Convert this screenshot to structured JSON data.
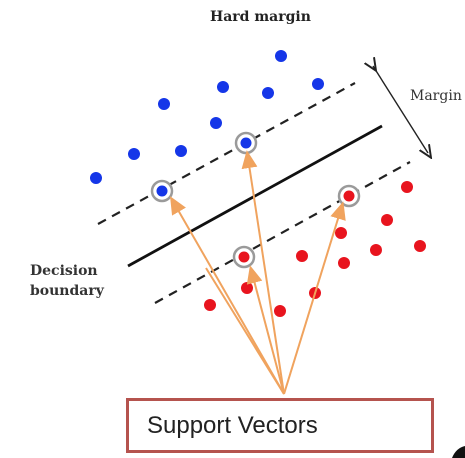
{
  "diagram": {
    "title": "Hard margin",
    "margin_label": "Margin",
    "decision_label_lines": [
      "Decision",
      "boundary"
    ],
    "callout_text": "Support Vectors",
    "colors": {
      "class_a": "#1536e8",
      "class_b": "#e8141e",
      "boundary": "#111111",
      "margin_lines": "#222222",
      "arrows": "#f0a35e",
      "callout_border": "#b5534e",
      "sv_ring": "#9a9a9a"
    },
    "class_a_points": [
      {
        "x": 1,
        "y": 17
      },
      {
        "x": 3.5,
        "y": 18
      },
      {
        "x": 4.5,
        "y": 20
      },
      {
        "x": 6,
        "y": 16
      },
      {
        "x": 6.5,
        "y": 19
      },
      {
        "x": 7,
        "y": 22
      },
      {
        "x": 8.5,
        "y": 22.5
      },
      {
        "x": 2,
        "y": 16
      },
      {
        "x": 3,
        "y": 15
      }
    ],
    "class_a_support": [
      {
        "x": 4,
        "y": 14
      },
      {
        "x": 7.2,
        "y": 17.4
      }
    ],
    "class_b_points": [
      {
        "x": 11,
        "y": 13.5
      },
      {
        "x": 10.5,
        "y": 11.2
      },
      {
        "x": 12,
        "y": 11.5
      },
      {
        "x": 11.2,
        "y": 9.3
      },
      {
        "x": 8.2,
        "y": 7.3
      },
      {
        "x": 9,
        "y": 9.3
      },
      {
        "x": 6.5,
        "y": 7.7
      },
      {
        "x": 7.5,
        "y": 6
      },
      {
        "x": 5.5,
        "y": 6.5
      },
      {
        "x": 10,
        "y": 10
      }
    ],
    "class_b_support": [
      {
        "x": 7,
        "y": 9.5
      },
      {
        "x": 10,
        "y": 14.3
      }
    ]
  }
}
